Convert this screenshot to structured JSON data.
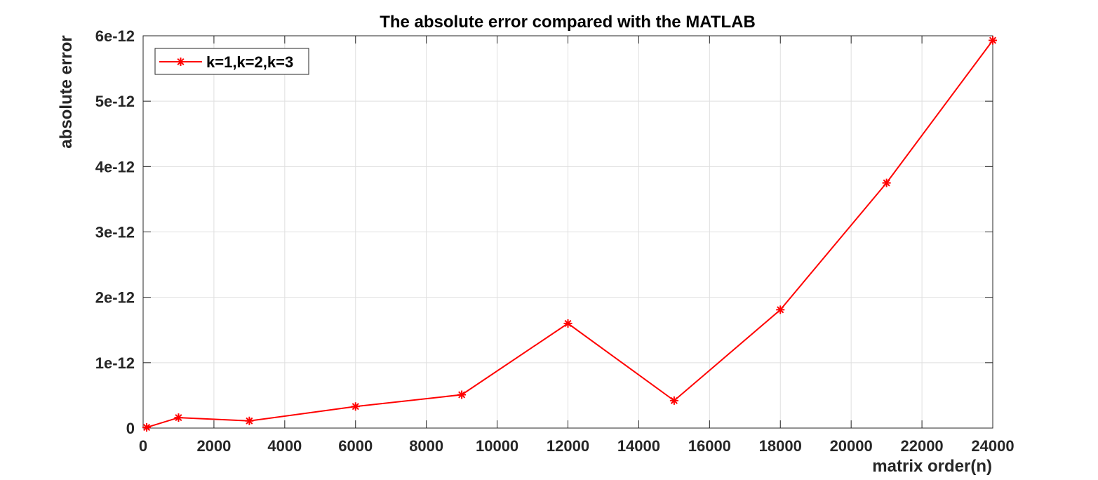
{
  "chart_data": {
    "type": "line",
    "title": "The absolute error compared with the MATLAB",
    "xlabel": "matrix order(n)",
    "ylabel": "absolute error",
    "xlim": [
      0,
      24000
    ],
    "ylim": [
      0,
      6e-12
    ],
    "x_ticks": [
      0,
      2000,
      4000,
      6000,
      8000,
      10000,
      12000,
      14000,
      16000,
      18000,
      20000,
      22000,
      24000
    ],
    "x_tick_labels": [
      "0",
      "2000",
      "4000",
      "6000",
      "8000",
      "10000",
      "12000",
      "14000",
      "16000",
      "18000",
      "20000",
      "22000",
      "24000"
    ],
    "y_ticks": [
      0,
      1e-12,
      2e-12,
      3e-12,
      4e-12,
      5e-12,
      6e-12
    ],
    "y_tick_labels": [
      "0",
      "1e-12",
      "2e-12",
      "3e-12",
      "4e-12",
      "5e-12",
      "6e-12"
    ],
    "grid": true,
    "legend_position": "top-left",
    "series": [
      {
        "name": "k=1,k=2,k=3",
        "color": "#ff0000",
        "marker": "asterisk",
        "x": [
          100,
          1000,
          3000,
          6000,
          9000,
          12000,
          15000,
          18000,
          21000,
          24000
        ],
        "y": [
          1e-14,
          1.6e-13,
          1.1e-13,
          3.3e-13,
          5.1e-13,
          1.6e-12,
          4.2e-13,
          1.81e-12,
          3.75e-12,
          5.93e-12
        ]
      }
    ]
  }
}
